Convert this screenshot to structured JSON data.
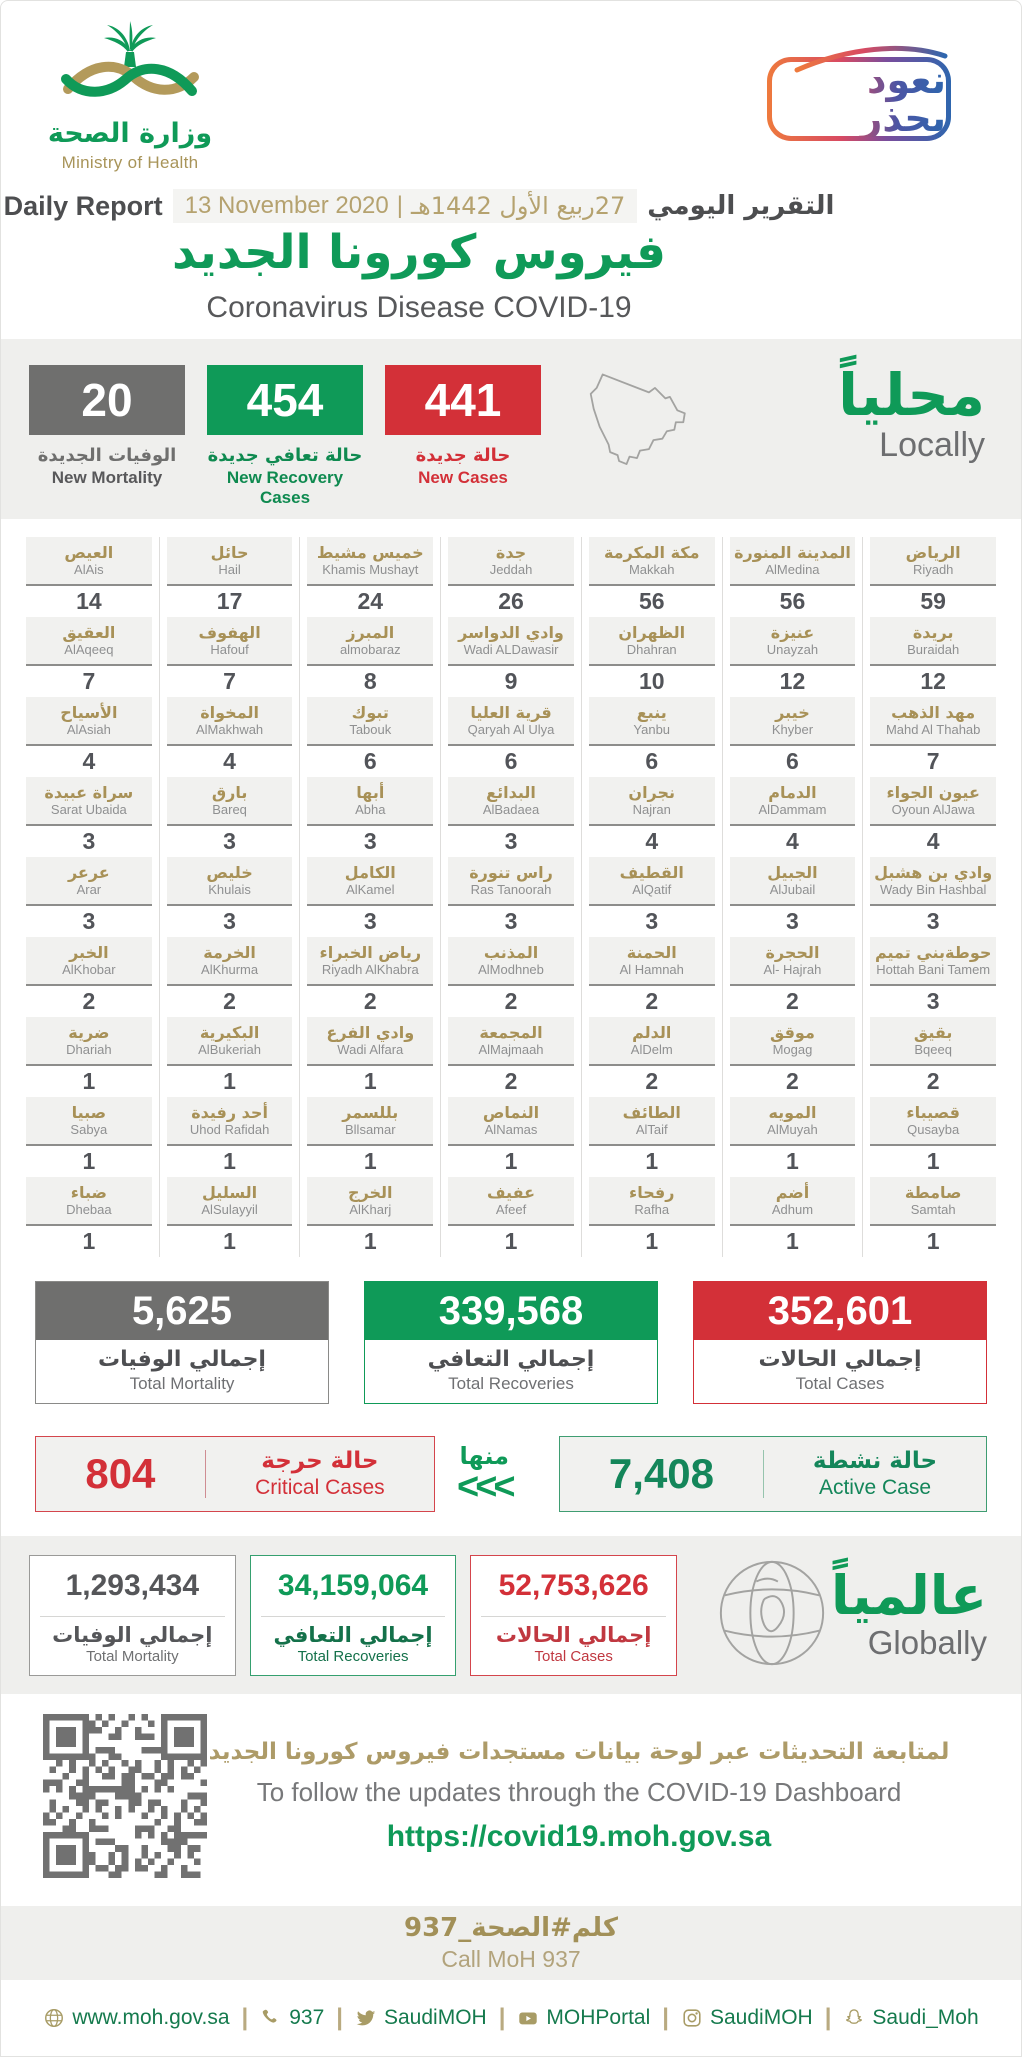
{
  "header": {
    "logo_ar": "وزارة الصحة",
    "logo_en": "Ministry of Health",
    "badge": "نعود بحذر",
    "report_label_ar": "التقرير اليومي",
    "date_hijri": "27ربيع الأول 1442هـ",
    "date_separator": "|",
    "date_gregorian": "13 November 2020",
    "report_label_en": "Daily Report",
    "title_ar": "فيروس كورونا الجديد",
    "title_en": "Coronavirus Disease COVID-19"
  },
  "locally": {
    "heading_ar": "محلياً",
    "heading_en": "Locally",
    "stats": [
      {
        "value": "20",
        "label_ar": "الوفيات الجديدة",
        "label_en": "New Mortality",
        "color": "gray"
      },
      {
        "value": "454",
        "label_ar": "حالة تعافي جديدة",
        "label_en": "New Recovery Cases",
        "color": "green"
      },
      {
        "value": "441",
        "label_ar": "حالة جديدة",
        "label_en": "New Cases",
        "color": "red"
      }
    ]
  },
  "cities": {
    "columns": [
      [
        {
          "ar": "العيص",
          "en": "AlAis",
          "value": "14"
        },
        {
          "ar": "العقيق",
          "en": "AlAqeeq",
          "value": "7"
        },
        {
          "ar": "الأسياح",
          "en": "AlAsiah",
          "value": "4"
        },
        {
          "ar": "سراة عبيدة",
          "en": "Sarat Ubaida",
          "value": "3"
        },
        {
          "ar": "عرعر",
          "en": "Arar",
          "value": "3"
        },
        {
          "ar": "الخبر",
          "en": "AlKhobar",
          "value": "2"
        },
        {
          "ar": "ضرية",
          "en": "Dhariah",
          "value": "1"
        },
        {
          "ar": "صبيا",
          "en": "Sabya",
          "value": "1"
        },
        {
          "ar": "ضباء",
          "en": "Dhebaa",
          "value": "1"
        }
      ],
      [
        {
          "ar": "حائل",
          "en": "Hail",
          "value": "17"
        },
        {
          "ar": "الهفوف",
          "en": "Hafouf",
          "value": "7"
        },
        {
          "ar": "المخواة",
          "en": "AlMakhwah",
          "value": "4"
        },
        {
          "ar": "بارق",
          "en": "Bareq",
          "value": "3"
        },
        {
          "ar": "خليص",
          "en": "Khulais",
          "value": "3"
        },
        {
          "ar": "الخرمة",
          "en": "AlKhurma",
          "value": "2"
        },
        {
          "ar": "البكيرية",
          "en": "AlBukeriah",
          "value": "1"
        },
        {
          "ar": "أحد رفيدة",
          "en": "Uhod Rafidah",
          "value": "1"
        },
        {
          "ar": "السليل",
          "en": "AlSulayyil",
          "value": "1"
        }
      ],
      [
        {
          "ar": "خميس مشيط",
          "en": "Khamis Mushayt",
          "value": "24"
        },
        {
          "ar": "المبرز",
          "en": "almobaraz",
          "value": "8"
        },
        {
          "ar": "تبوك",
          "en": "Tabouk",
          "value": "6"
        },
        {
          "ar": "أبها",
          "en": "Abha",
          "value": "3"
        },
        {
          "ar": "الكامل",
          "en": "AlKamel",
          "value": "3"
        },
        {
          "ar": "رياض الخبراء",
          "en": "Riyadh AlKhabra",
          "value": "2"
        },
        {
          "ar": "وادي الفرع",
          "en": "Wadi Alfara",
          "value": "1"
        },
        {
          "ar": "بللسمر",
          "en": "Bllsamar",
          "value": "1"
        },
        {
          "ar": "الخرج",
          "en": "AlKharj",
          "value": "1"
        }
      ],
      [
        {
          "ar": "جدة",
          "en": "Jeddah",
          "value": "26"
        },
        {
          "ar": "وادي الدواسر",
          "en": "Wadi ALDawasir",
          "value": "9"
        },
        {
          "ar": "قرية العليا",
          "en": "Qaryah Al Ulya",
          "value": "6"
        },
        {
          "ar": "البدائع",
          "en": "AlBadaea",
          "value": "3"
        },
        {
          "ar": "راس تنورة",
          "en": "Ras Tanoorah",
          "value": "3"
        },
        {
          "ar": "المذنب",
          "en": "AlModhneb",
          "value": "2"
        },
        {
          "ar": "المجمعة",
          "en": "AlMajmaah",
          "value": "2"
        },
        {
          "ar": "النماص",
          "en": "AlNamas",
          "value": "1"
        },
        {
          "ar": "عفيف",
          "en": "Afeef",
          "value": "1"
        }
      ],
      [
        {
          "ar": "مكة المكرمة",
          "en": "Makkah",
          "value": "56"
        },
        {
          "ar": "الظهران",
          "en": "Dhahran",
          "value": "10"
        },
        {
          "ar": "ينبع",
          "en": "Yanbu",
          "value": "6"
        },
        {
          "ar": "نجران",
          "en": "Najran",
          "value": "4"
        },
        {
          "ar": "القطيف",
          "en": "AlQatif",
          "value": "3"
        },
        {
          "ar": "الحمنة",
          "en": "Al Hamnah",
          "value": "2"
        },
        {
          "ar": "الدلم",
          "en": "AlDelm",
          "value": "2"
        },
        {
          "ar": "الطائف",
          "en": "AlTaif",
          "value": "1"
        },
        {
          "ar": "رفحاء",
          "en": "Rafha",
          "value": "1"
        }
      ],
      [
        {
          "ar": "المدينة المنورة",
          "en": "AlMedina",
          "value": "56"
        },
        {
          "ar": "عنيزة",
          "en": "Unayzah",
          "value": "12"
        },
        {
          "ar": "خيبر",
          "en": "Khyber",
          "value": "6"
        },
        {
          "ar": "الدمام",
          "en": "AlDammam",
          "value": "4"
        },
        {
          "ar": "الجبيل",
          "en": "AlJubail",
          "value": "3"
        },
        {
          "ar": "الحجرة",
          "en": "Al- Hajrah",
          "value": "2"
        },
        {
          "ar": "موقق",
          "en": "Mogag",
          "value": "2"
        },
        {
          "ar": "المويه",
          "en": "AlMuyah",
          "value": "1"
        },
        {
          "ar": "أضم",
          "en": "Adhum",
          "value": "1"
        }
      ],
      [
        {
          "ar": "الرياض",
          "en": "Riyadh",
          "value": "59"
        },
        {
          "ar": "بريدة",
          "en": "Buraidah",
          "value": "12"
        },
        {
          "ar": "مهد الذهب",
          "en": "Mahd Al Thahab",
          "value": "7"
        },
        {
          "ar": "عيون الجواء",
          "en": "Oyoun AlJawa",
          "value": "4"
        },
        {
          "ar": "وادي بن هشبل",
          "en": "Wady Bin Hashbal",
          "value": "3"
        },
        {
          "ar": "حوطةبني تميم",
          "en": "Hottah Bani Tamem",
          "value": "3"
        },
        {
          "ar": "بقيق",
          "en": "Bqeeq",
          "value": "2"
        },
        {
          "ar": "قصيباء",
          "en": "Qusayba",
          "value": "1"
        },
        {
          "ar": "صامطة",
          "en": "Samtah",
          "value": "1"
        }
      ]
    ]
  },
  "totals": [
    {
      "value": "5,625",
      "label_ar": "إجمالي الوفيات",
      "label_en": "Total Mortality",
      "color": "gray"
    },
    {
      "value": "339,568",
      "label_ar": "إجمالي التعافي",
      "label_en": "Total Recoveries",
      "color": "green"
    },
    {
      "value": "352,601",
      "label_ar": "إجمالي الحالات",
      "label_en": "Total Cases",
      "color": "red"
    }
  ],
  "critical": {
    "value": "804",
    "label_ar": "حالة حرجة",
    "label_en": "Critical Cases"
  },
  "flow": {
    "of_which": "منها",
    "arrows": "<<<"
  },
  "active": {
    "value": "7,408",
    "label_ar": "حالة نشطة",
    "label_en": "Active Case"
  },
  "globally": {
    "heading_ar": "عالمياً",
    "heading_en": "Globally",
    "stats": [
      {
        "value": "1,293,434",
        "label_ar": "إجمالي الوفيات",
        "label_en": "Total Mortality",
        "color": "gray"
      },
      {
        "value": "34,159,064",
        "label_ar": "إجمالي التعافي",
        "label_en": "Total Recoveries",
        "color": "green"
      },
      {
        "value": "52,753,626",
        "label_ar": "إجمالي الحالات",
        "label_en": "Total Cases",
        "color": "red"
      }
    ]
  },
  "dashboard": {
    "line_ar": "لمتابعة التحديثات عبر لوحة بيانات مستجدات فيروس كورونا الجديد",
    "line_en": "To follow the updates through the COVID-19 Dashboard",
    "url": "https://covid19.moh.gov.sa"
  },
  "call": {
    "line_ar": "كلم#الصحة_937",
    "line_en": "Call MoH 937"
  },
  "footer": {
    "items": [
      {
        "icon": "globe-icon",
        "label": "www.moh.gov.sa"
      },
      {
        "icon": "phone-icon",
        "label": "937"
      },
      {
        "icon": "twitter-icon",
        "label": "SaudiMOH"
      },
      {
        "icon": "youtube-icon",
        "label": "MOHPortal"
      },
      {
        "icon": "instagram-icon",
        "label": "SaudiMOH"
      },
      {
        "icon": "snapchat-icon",
        "label": "Saudi_Moh"
      }
    ]
  },
  "colors": {
    "green": "#0f9a58",
    "red": "#d33038",
    "gray": "#6f6f6e",
    "gold": "#a89459",
    "band_bg": "#efefed"
  }
}
